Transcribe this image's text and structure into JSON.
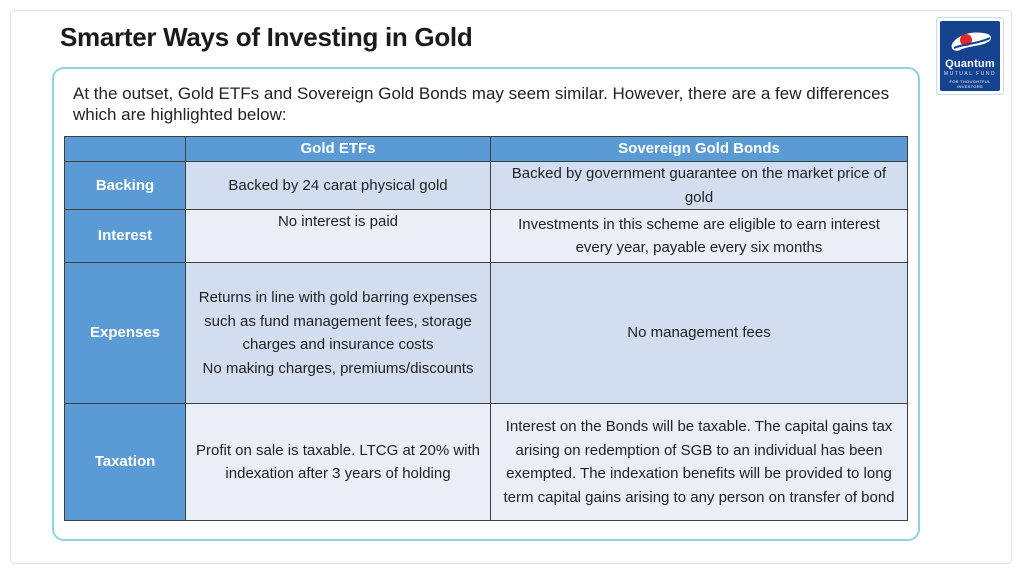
{
  "title": "Smarter Ways of Investing in Gold",
  "logo": {
    "name": "Quantum",
    "subtitle": "MUTUAL FUND",
    "tagline_line1": "FOR THOUGHTFUL",
    "tagline_line2": "INVESTORS"
  },
  "intro": "At the outset, Gold ETFs and Sovereign Gold Bonds may seem similar. However, there are a few differences which are highlighted below:",
  "table": {
    "headers": [
      "",
      "Gold ETFs",
      "Sovereign Gold Bonds"
    ],
    "rows": [
      {
        "label": "Backing",
        "gold_etfs": "Backed by 24 carat physical gold",
        "sgb": "Backed by government guarantee on the market price of gold"
      },
      {
        "label": "Interest",
        "gold_etfs": "No interest is paid",
        "sgb": "Investments in this scheme are eligible to earn interest every year, payable every six months"
      },
      {
        "label": "Expenses",
        "gold_etfs_line1": "Returns in line with gold barring expenses such as fund management fees, storage charges and insurance costs",
        "gold_etfs_line2": "No making charges, premiums/discounts",
        "sgb": "No management fees"
      },
      {
        "label": "Taxation",
        "gold_etfs": "Profit on sale is taxable. LTCG at 20% with indexation after 3 years of holding",
        "sgb": "Interest on the Bonds will be taxable. The capital gains tax arising on redemption of SGB to an individual has been exempted. The indexation benefits will be provided to long term capital gains arising to any person on transfer of bond"
      }
    ]
  }
}
